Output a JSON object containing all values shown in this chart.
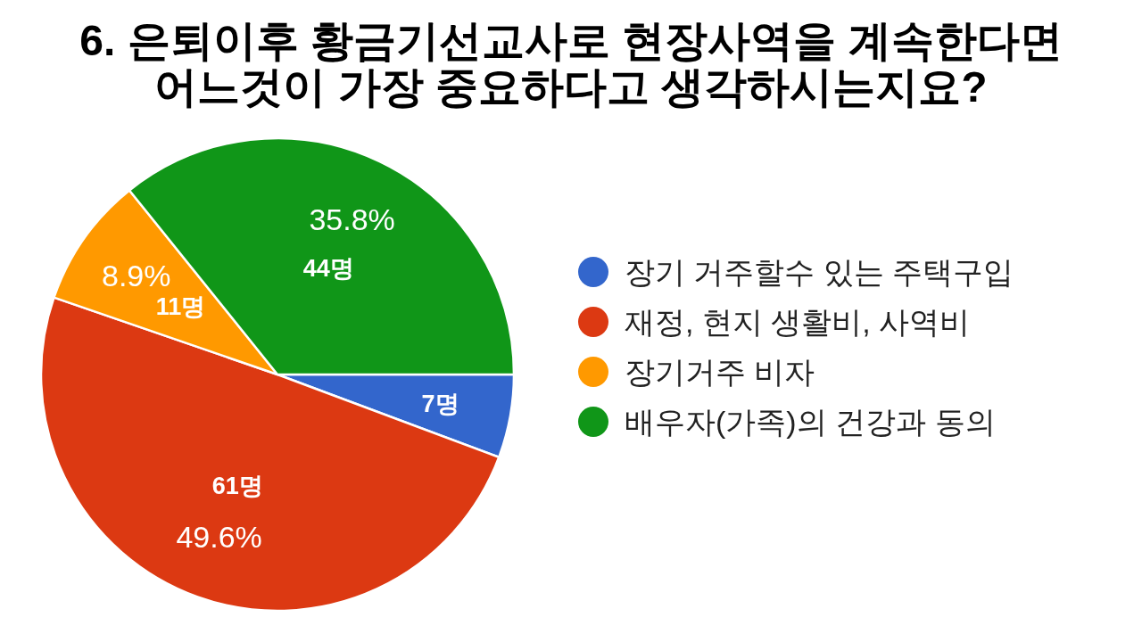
{
  "chart_data": {
    "type": "pie",
    "title": "6. 은퇴이후 황금기선교사로 현장사역을 계속한다면\n어느것이 가장 중요하다고 생각하시는지요?",
    "categories": [
      "장기 거주할수 있는 주택구입",
      "재정, 현지 생활비, 사역비",
      "장기거주 비자",
      "배우자(가족)의 건강과 동의"
    ],
    "values": [
      7,
      61,
      11,
      44
    ],
    "colors": [
      "#3366cc",
      "#dc3912",
      "#ff9900",
      "#109618"
    ],
    "value_labels": [
      "7명",
      "61명",
      "11명",
      "44명"
    ],
    "annotations": [
      {
        "text": "49.6%",
        "x": "재정, 현지 생활비, 사역비"
      },
      {
        "text": "8.9%",
        "x": "장기거주 비자"
      },
      {
        "text": "35.8%",
        "x": "배우자(가족)의 건강과 동의"
      }
    ],
    "legend": "right"
  }
}
